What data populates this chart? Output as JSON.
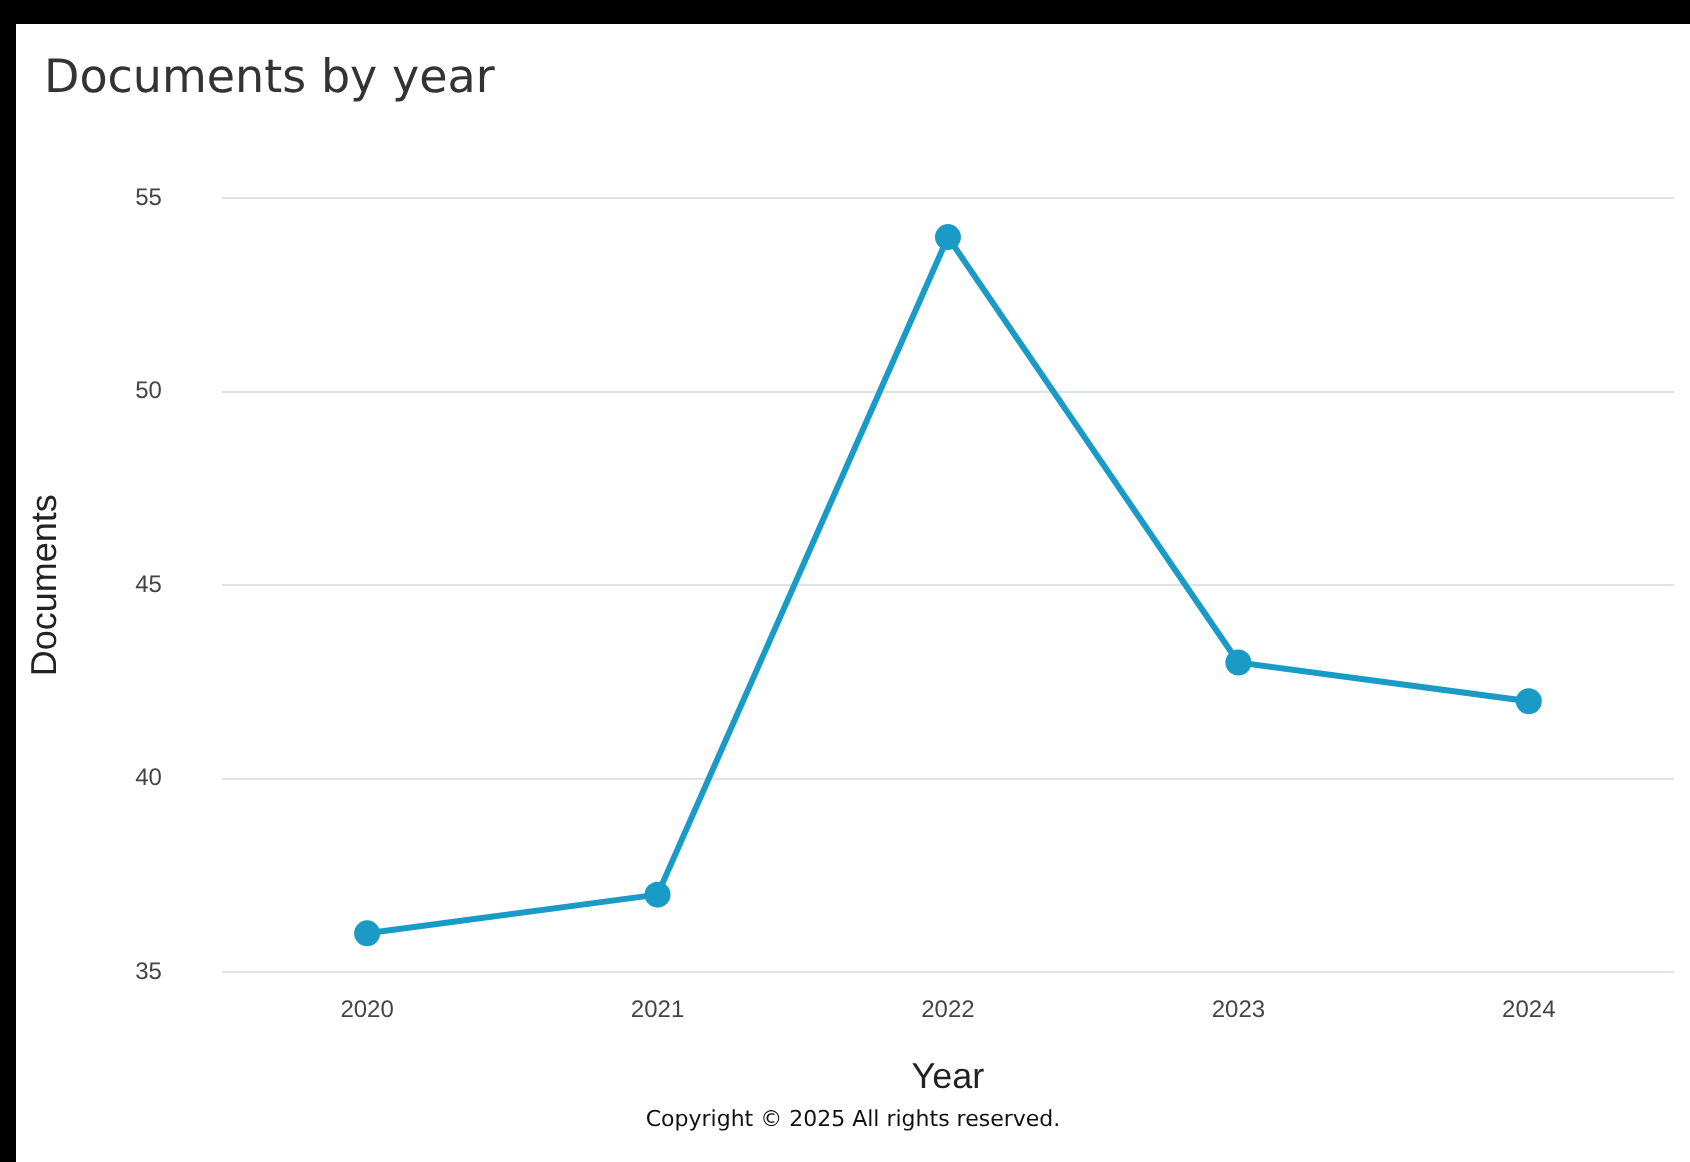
{
  "chart_data": {
    "type": "line",
    "title": "Documents by year",
    "xlabel": "Year",
    "ylabel": "Documents",
    "categories": [
      "2020",
      "2021",
      "2022",
      "2023",
      "2024"
    ],
    "series": [
      {
        "color": "#1a9bc7",
        "values": [
          36,
          37,
          54,
          43,
          42
        ]
      }
    ],
    "ylim": [
      35,
      55
    ],
    "yticks": [
      35,
      40,
      45,
      50,
      55
    ],
    "grid": "y",
    "legend": false,
    "marker": "circle",
    "line_style": "solid",
    "annotations": [
      "Copyright © 2025 All rights reserved."
    ]
  }
}
